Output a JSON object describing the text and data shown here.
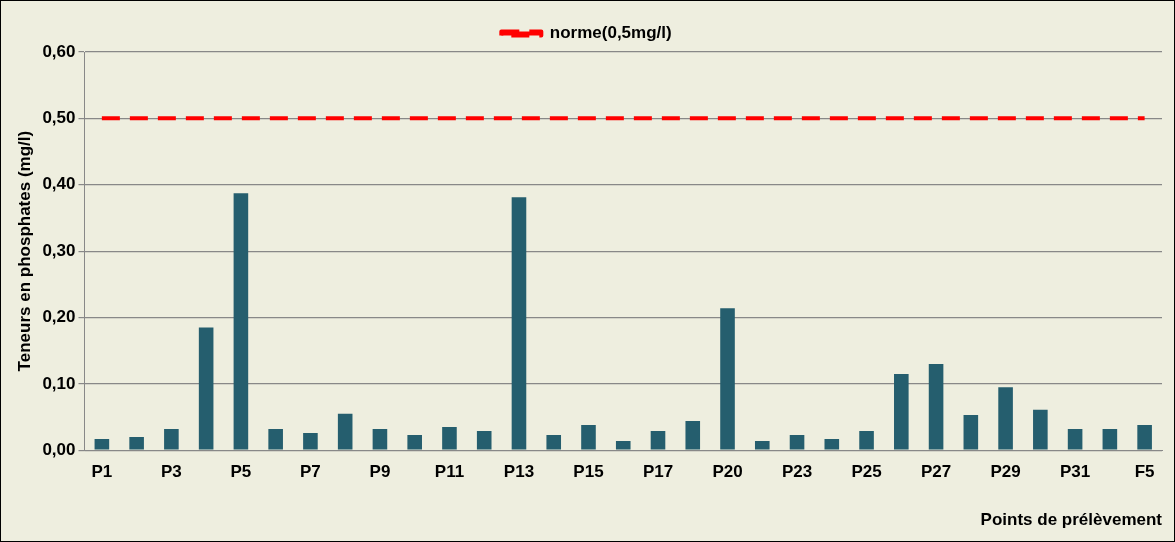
{
  "chart_data": {
    "type": "bar",
    "xlabel": "Points de prélèvement",
    "ylabel": "Teneurs en phosphates (mg/l)",
    "categories": [
      "P1",
      null,
      "P3",
      null,
      "P5",
      null,
      "P7",
      null,
      "P9",
      null,
      "P11",
      null,
      "P13",
      null,
      "P15",
      null,
      "P17",
      null,
      "P20",
      null,
      "P23",
      null,
      "P25",
      null,
      "P27",
      null,
      "P29",
      null,
      "P31",
      null,
      "F5"
    ],
    "series": [
      {
        "color": "#255e6e",
        "values": [
          0.017,
          0.02,
          0.032,
          0.185,
          0.387,
          0.032,
          0.026,
          0.055,
          0.032,
          0.023,
          0.035,
          0.029,
          0.381,
          0.023,
          0.038,
          0.014,
          0.029,
          0.044,
          0.214,
          0.014,
          0.023,
          0.017,
          0.029,
          0.115,
          0.13,
          0.053,
          0.095,
          0.061,
          0.032,
          0.032,
          0.038
        ]
      },
      {
        "name": "norme(0,5mg/l)",
        "type": "line",
        "color": "#ff0000",
        "values": [
          0.5,
          0.5,
          0.5,
          0.5,
          0.5,
          0.5,
          0.5,
          0.5,
          0.5,
          0.5,
          0.5,
          0.5,
          0.5,
          0.5,
          0.5,
          0.5,
          0.5,
          0.5,
          0.5,
          0.5,
          0.5,
          0.5,
          0.5,
          0.5,
          0.5,
          0.5,
          0.5,
          0.5,
          0.5,
          0.5,
          0.5
        ]
      }
    ],
    "ylim": [
      0,
      0.6
    ],
    "yticks": [
      {
        "value": 0,
        "label": "0,00"
      },
      {
        "value": 0.1,
        "label": "0,10"
      },
      {
        "value": 0.2,
        "label": "0,20"
      },
      {
        "value": 0.3,
        "label": "0,30"
      },
      {
        "value": 0.4,
        "label": "0,40"
      },
      {
        "value": 0.5,
        "label": "0,50"
      },
      {
        "value": 0.6,
        "label": "0,60"
      }
    ],
    "line_style": "dashed",
    "grid": "y",
    "legend": "top"
  }
}
